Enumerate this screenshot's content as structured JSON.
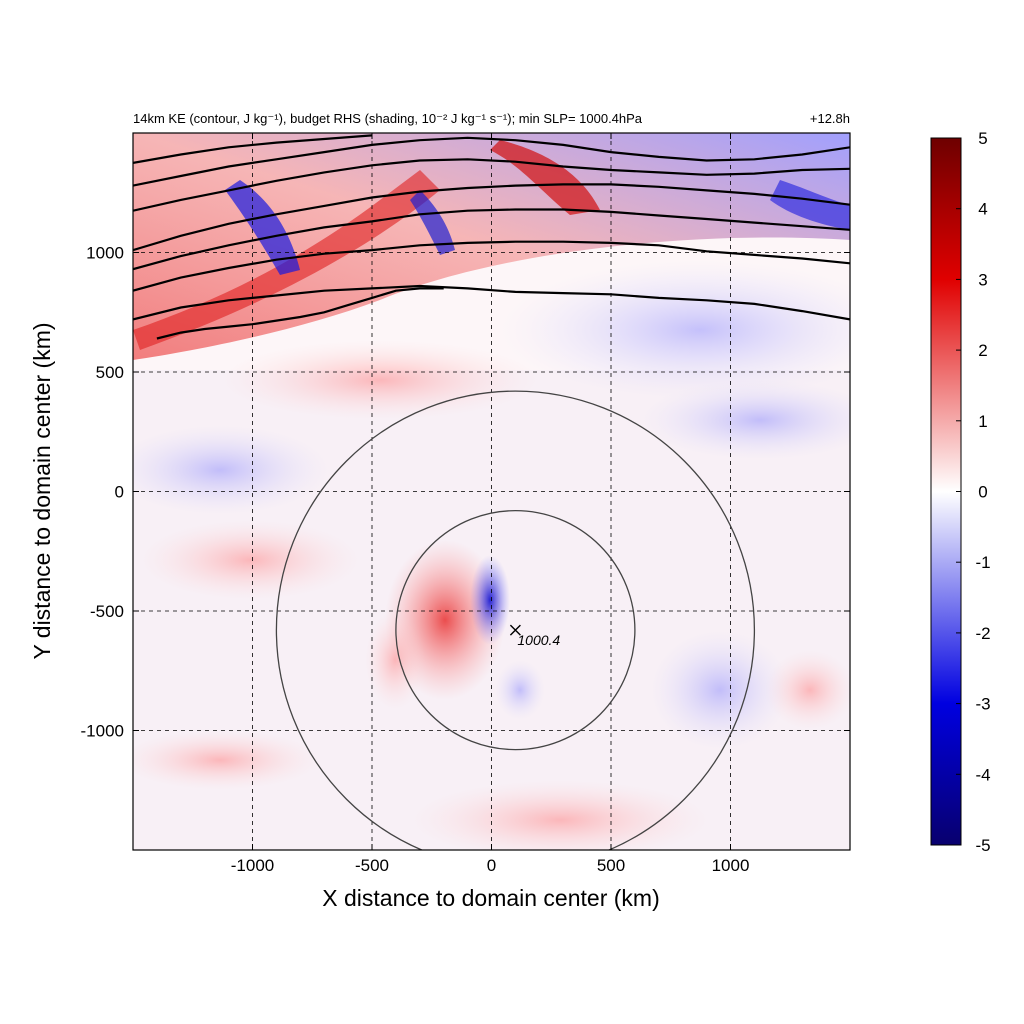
{
  "chart_data": {
    "type": "heatmap",
    "title": "14km KE (contour, J kg⁻¹), budget RHS (shading, 10⁻² J kg⁻¹ s⁻¹); min SLP= 1000.4hPa",
    "time_label": "+12.8h",
    "xlabel": "X distance to domain center (km)",
    "ylabel": "Y distance to domain center (km)",
    "xlim": [
      -1500,
      1500
    ],
    "ylim": [
      -1500,
      1500
    ],
    "x_ticks": [
      -1000,
      -500,
      0,
      500,
      1000
    ],
    "x_tick_labels": [
      "-1000",
      "-500",
      "0",
      "500",
      "1000"
    ],
    "y_ticks": [
      -1000,
      -500,
      0,
      500,
      1000
    ],
    "y_tick_labels": [
      "-1000",
      "-500",
      "0",
      "500",
      "1000"
    ],
    "grid": true,
    "grid_style": "dashed",
    "colorbar": {
      "range": [
        -5,
        5
      ],
      "ticks": [
        5,
        4,
        3,
        2,
        1,
        0,
        -1,
        -2,
        -3,
        -4,
        -5
      ],
      "tick_labels": [
        "5",
        "4",
        "3",
        "2",
        "1",
        "0",
        "-1",
        "-2",
        "-3",
        "-4",
        "-5"
      ],
      "colormap": [
        "#08006e",
        "#0000ff",
        "#ffffff",
        "#ff0000",
        "#6e0000"
      ]
    },
    "storm_center": {
      "x": 100,
      "y": -580,
      "label": "1000.4"
    },
    "range_rings_km": [
      500,
      1000
    ],
    "ke_contours": [
      [
        [
          -1500,
          1375
        ],
        [
          -1300,
          1410
        ],
        [
          -1100,
          1440
        ],
        [
          -900,
          1460
        ],
        [
          -700,
          1475
        ],
        [
          -500,
          1490
        ]
      ],
      [
        [
          -1500,
          1280
        ],
        [
          -1300,
          1320
        ],
        [
          -1100,
          1360
        ],
        [
          -900,
          1390
        ],
        [
          -700,
          1420
        ],
        [
          -500,
          1450
        ],
        [
          -300,
          1470
        ],
        [
          -100,
          1480
        ],
        [
          100,
          1470
        ],
        [
          300,
          1450
        ],
        [
          500,
          1420
        ],
        [
          700,
          1400
        ],
        [
          900,
          1385
        ],
        [
          1100,
          1390
        ],
        [
          1300,
          1410
        ],
        [
          1500,
          1440
        ]
      ],
      [
        [
          -1500,
          1175
        ],
        [
          -1300,
          1220
        ],
        [
          -1100,
          1260
        ],
        [
          -900,
          1300
        ],
        [
          -700,
          1335
        ],
        [
          -500,
          1365
        ],
        [
          -300,
          1385
        ],
        [
          -100,
          1390
        ],
        [
          100,
          1380
        ],
        [
          300,
          1360
        ],
        [
          500,
          1345
        ],
        [
          700,
          1335
        ],
        [
          900,
          1325
        ],
        [
          1100,
          1330
        ],
        [
          1300,
          1345
        ],
        [
          1500,
          1350
        ]
      ],
      [
        [
          -1500,
          1010
        ],
        [
          -1300,
          1070
        ],
        [
          -1100,
          1120
        ],
        [
          -900,
          1160
        ],
        [
          -700,
          1195
        ],
        [
          -500,
          1230
        ],
        [
          -300,
          1255
        ],
        [
          -100,
          1270
        ],
        [
          100,
          1280
        ],
        [
          300,
          1285
        ],
        [
          500,
          1285
        ],
        [
          700,
          1275
        ],
        [
          900,
          1260
        ],
        [
          1100,
          1245
        ],
        [
          1300,
          1225
        ],
        [
          1500,
          1200
        ]
      ],
      [
        [
          -1500,
          930
        ],
        [
          -1300,
          985
        ],
        [
          -1100,
          1030
        ],
        [
          -900,
          1070
        ],
        [
          -700,
          1105
        ],
        [
          -500,
          1130
        ],
        [
          -300,
          1160
        ],
        [
          -100,
          1175
        ],
        [
          100,
          1180
        ],
        [
          300,
          1180
        ],
        [
          500,
          1170
        ],
        [
          700,
          1155
        ],
        [
          900,
          1140
        ],
        [
          1100,
          1125
        ],
        [
          1300,
          1110
        ],
        [
          1500,
          1095
        ]
      ],
      [
        [
          -1500,
          840
        ],
        [
          -1300,
          895
        ],
        [
          -1100,
          935
        ],
        [
          -900,
          970
        ],
        [
          -700,
          995
        ],
        [
          -500,
          1010
        ],
        [
          -300,
          1030
        ],
        [
          -100,
          1040
        ],
        [
          100,
          1045
        ],
        [
          300,
          1045
        ],
        [
          500,
          1040
        ],
        [
          700,
          1030
        ],
        [
          900,
          1005
        ],
        [
          1100,
          990
        ],
        [
          1300,
          975
        ],
        [
          1500,
          955
        ]
      ],
      [
        [
          -1500,
          720
        ],
        [
          -1300,
          770
        ],
        [
          -1100,
          800
        ],
        [
          -900,
          820
        ],
        [
          -700,
          840
        ],
        [
          -500,
          850
        ],
        [
          -300,
          860
        ],
        [
          -100,
          850
        ],
        [
          100,
          835
        ],
        [
          300,
          830
        ],
        [
          500,
          825
        ],
        [
          700,
          810
        ],
        [
          900,
          800
        ],
        [
          1100,
          785
        ],
        [
          1300,
          755
        ],
        [
          1500,
          720
        ]
      ],
      [
        [
          -1400,
          640
        ],
        [
          -1300,
          665
        ],
        [
          -1200,
          680
        ],
        [
          -1100,
          690
        ],
        [
          -1000,
          700
        ],
        [
          -900,
          715
        ],
        [
          -800,
          730
        ],
        [
          -700,
          750
        ],
        [
          -600,
          780
        ],
        [
          -500,
          810
        ],
        [
          -400,
          840
        ],
        [
          -300,
          850
        ],
        [
          -200,
          850
        ]
      ]
    ]
  }
}
